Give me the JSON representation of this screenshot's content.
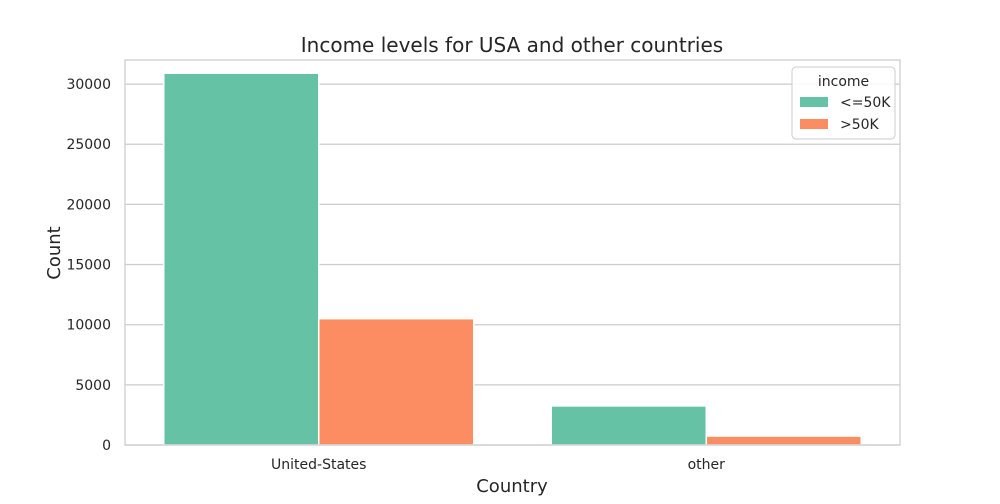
{
  "chart_data": {
    "type": "bar",
    "title": "Income levels for USA and other countries",
    "xlabel": "Country",
    "ylabel": "Count",
    "categories": [
      "United-States",
      "other"
    ],
    "series": [
      {
        "name": "<=50K",
        "values": [
          30900,
          3250
        ],
        "color": "#66c2a5"
      },
      {
        "name": ">50K",
        "values": [
          10500,
          740
        ],
        "color": "#fc8d62"
      }
    ],
    "ylim": [
      0,
      32000
    ],
    "yticks": [
      0,
      5000,
      10000,
      15000,
      20000,
      25000,
      30000
    ],
    "ytick_labels": [
      "0",
      "5000",
      "10000",
      "15000",
      "20000",
      "25000",
      "30000"
    ],
    "grid": true,
    "legend": {
      "title": "income",
      "placement": "top-right",
      "entries": [
        "<=50K",
        ">50K"
      ]
    }
  }
}
